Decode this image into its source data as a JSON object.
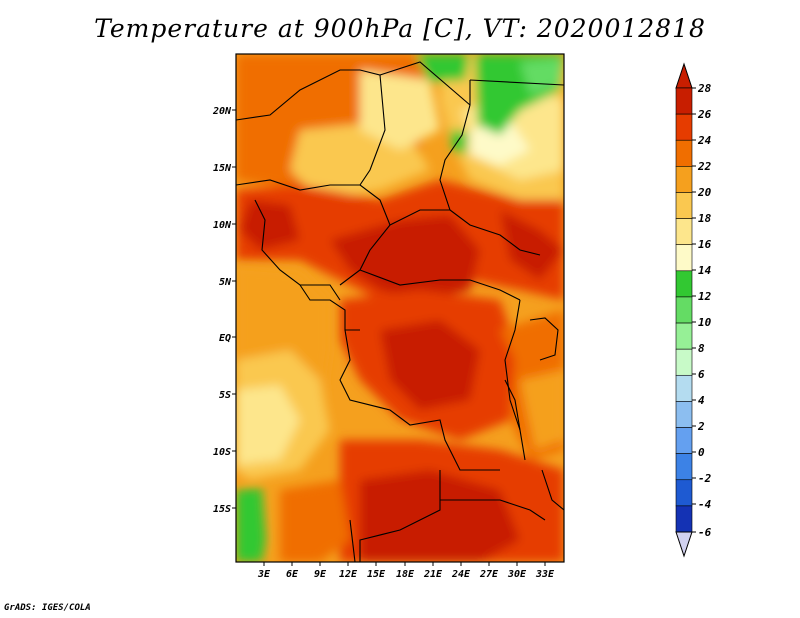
{
  "title": "Temperature at 900hPa [C], VT: 2020012818",
  "credit": "GrADS: IGES/COLA",
  "lat_labels": [
    "20N",
    "15N",
    "10N",
    "5N",
    "EQ",
    "5S",
    "10S",
    "15S"
  ],
  "lon_labels": [
    "3E",
    "6E",
    "9E",
    "12E",
    "15E",
    "18E",
    "21E",
    "24E",
    "27E",
    "30E",
    "33E"
  ],
  "colorbar": {
    "labels": [
      "28",
      "26",
      "24",
      "22",
      "20",
      "18",
      "16",
      "14",
      "12",
      "10",
      "8",
      "6",
      "4",
      "2",
      "0",
      "-2",
      "-4",
      "-6"
    ],
    "colors": [
      "#8c0000",
      "#c81e00",
      "#e63c00",
      "#f06e00",
      "#f5a01e",
      "#fac850",
      "#fde68c",
      "#fefac8",
      "#32c832",
      "#64dc64",
      "#96f096",
      "#c8fac8",
      "#b4dcf0",
      "#8cbef0",
      "#64a0f0",
      "#3c82e6",
      "#1e5ad2",
      "#1432b4",
      "#0a1478"
    ],
    "over_color": "#c81e00",
    "under_color": "#d2d2f0"
  }
}
